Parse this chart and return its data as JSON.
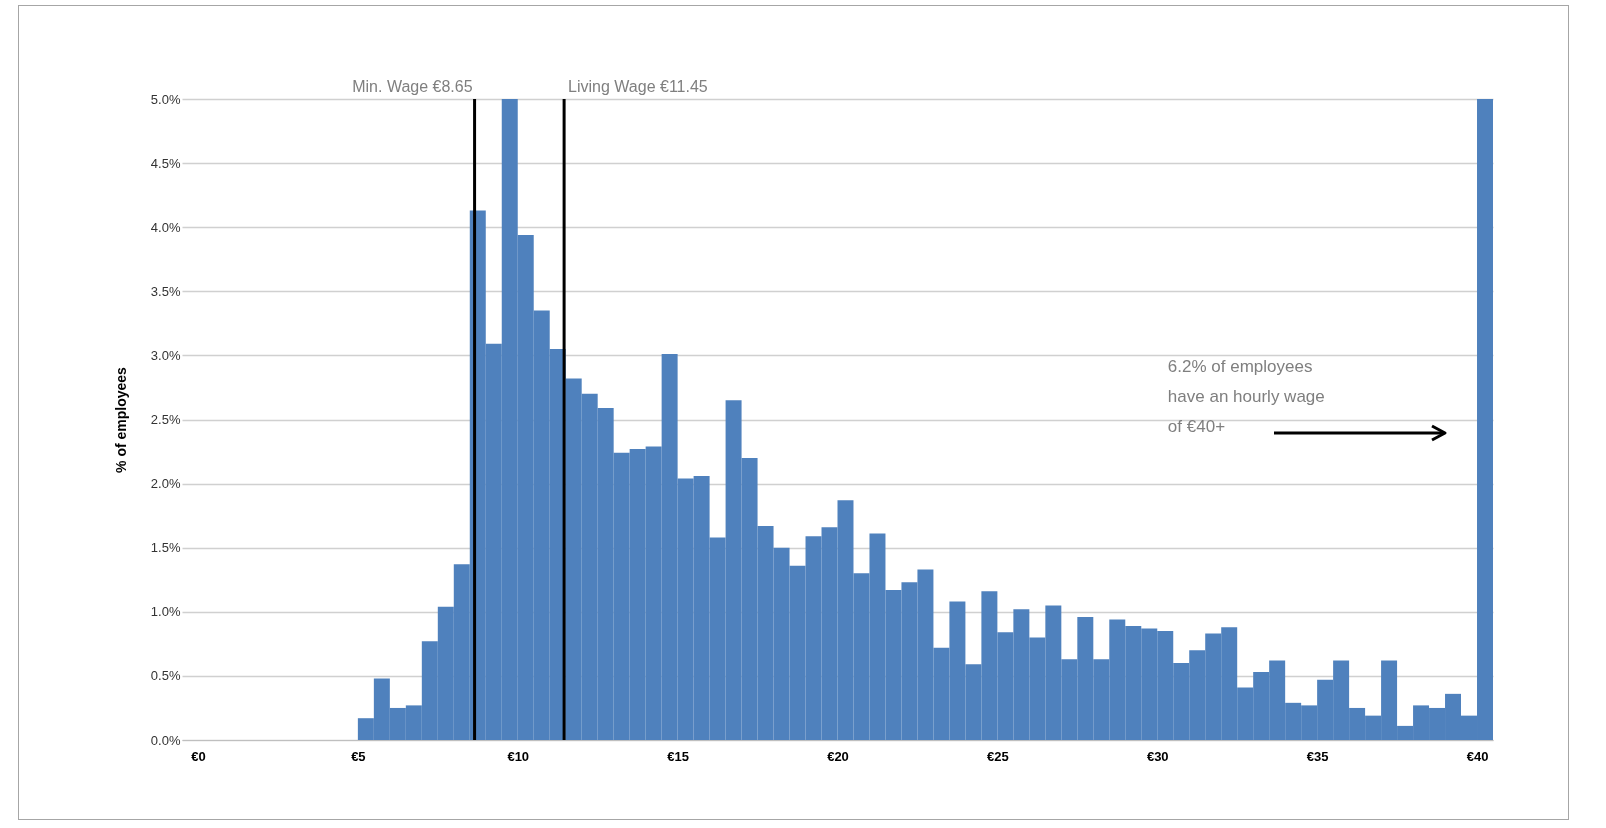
{
  "chart_data": {
    "type": "histogram",
    "bins": [
      5,
      5.5,
      6,
      6.5,
      7,
      7.5,
      8,
      8.5,
      9,
      9.5,
      10,
      10.5,
      11,
      11.5,
      12,
      12.5,
      13,
      13.5,
      14,
      14.5,
      15,
      15.5,
      16,
      16.5,
      17,
      17.5,
      18,
      18.5,
      19,
      19.5,
      20,
      20.5,
      21,
      21.5,
      22,
      22.5,
      23,
      23.5,
      24,
      24.5,
      25,
      25.5,
      26,
      26.5,
      27,
      27.5,
      28,
      28.5,
      29,
      29.5,
      30,
      30.5,
      31,
      31.5,
      32,
      32.5,
      33,
      33.5,
      34,
      34.5,
      35,
      35.5,
      36,
      36.5,
      37,
      37.5,
      38,
      38.5,
      39,
      39.5,
      40,
      40.5
    ],
    "values": [
      0.17,
      0.48,
      0.25,
      0.27,
      0.77,
      1.04,
      1.37,
      4.13,
      3.09,
      5.0,
      3.94,
      3.35,
      3.05,
      2.82,
      2.7,
      2.59,
      2.24,
      2.27,
      2.29,
      3.01,
      2.04,
      2.06,
      1.58,
      2.65,
      2.2,
      1.67,
      1.5,
      1.36,
      1.59,
      1.66,
      1.87,
      1.3,
      1.61,
      1.17,
      1.23,
      1.33,
      0.72,
      1.08,
      0.59,
      1.16,
      0.84,
      1.02,
      0.8,
      1.05,
      0.63,
      0.96,
      0.63,
      0.94,
      0.89,
      0.87,
      0.85,
      0.6,
      0.7,
      0.83,
      0.88,
      0.41,
      0.53,
      0.62,
      0.29,
      0.27,
      0.47,
      0.62,
      0.25,
      0.19,
      0.62,
      0.11,
      0.27,
      0.25,
      0.36,
      0.19,
      5.0
    ],
    "color": "#4f81bd",
    "ylabel": "% of employees",
    "xlim": [
      -0.5,
      40.5
    ],
    "xticks": [
      {
        "value": 0,
        "label": "€0"
      },
      {
        "value": 5,
        "label": "€5"
      },
      {
        "value": 10,
        "label": "€10"
      },
      {
        "value": 15,
        "label": "€15"
      },
      {
        "value": 20,
        "label": "€20"
      },
      {
        "value": 25,
        "label": "€25"
      },
      {
        "value": 30,
        "label": "€30"
      },
      {
        "value": 35,
        "label": "€35"
      },
      {
        "value": 40,
        "label": "€40"
      }
    ],
    "ylim": [
      0,
      5
    ],
    "yticks": [
      {
        "value": 0,
        "label": "0.0%"
      },
      {
        "value": 0.5,
        "label": "0.5%"
      },
      {
        "value": 1,
        "label": "1.0%"
      },
      {
        "value": 1.5,
        "label": "1.5%"
      },
      {
        "value": 2,
        "label": "2.0%"
      },
      {
        "value": 2.5,
        "label": "2.5%"
      },
      {
        "value": 3,
        "label": "3.0%"
      },
      {
        "value": 3.5,
        "label": "3.5%"
      },
      {
        "value": 4,
        "label": "4.0%"
      },
      {
        "value": 4.5,
        "label": "4.5%"
      },
      {
        "value": 5,
        "label": "5.0%"
      }
    ],
    "grid": "y",
    "ref_lines": [
      {
        "axis": "x",
        "value": 8.65,
        "label": "Min. Wage €8.65",
        "color": "#000000"
      },
      {
        "axis": "x",
        "value": 11.45,
        "label": "Living Wage €11.45",
        "color": "#000000"
      }
    ],
    "annotations": [
      "6.2% of employees have an hourly wage of €40+"
    ]
  }
}
